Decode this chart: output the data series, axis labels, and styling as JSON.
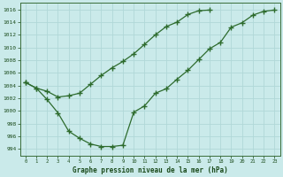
{
  "title": "Graphe pression niveau de la mer (hPa)",
  "background_color": "#caeaea",
  "grid_color": "#b0d8d8",
  "line_color": "#2d6b2d",
  "ylim": [
    993.0,
    1017.0
  ],
  "xlim": [
    -0.5,
    23.5
  ],
  "yticks": [
    994,
    996,
    998,
    1000,
    1002,
    1004,
    1006,
    1008,
    1010,
    1012,
    1014,
    1016
  ],
  "xticks": [
    0,
    1,
    2,
    3,
    4,
    5,
    6,
    7,
    8,
    9,
    10,
    11,
    12,
    13,
    14,
    15,
    16,
    17,
    18,
    19,
    20,
    21,
    22,
    23
  ],
  "series1_x": [
    0,
    1,
    2,
    3,
    4,
    5,
    6,
    7,
    8,
    9,
    10,
    11,
    12,
    13,
    14,
    15,
    16,
    17
  ],
  "series1_y": [
    1004.5,
    1003.6,
    1003.1,
    1002.2,
    1002.4,
    1002.8,
    1004.2,
    1005.6,
    1006.8,
    1007.8,
    1009.0,
    1010.5,
    1012.0,
    1013.3,
    1014.0,
    1015.2,
    1015.8,
    1015.9
  ],
  "series2_x": [
    0,
    1,
    2,
    3,
    4,
    5,
    6,
    7,
    8,
    9,
    10,
    11,
    12,
    13,
    14,
    15,
    16,
    17,
    18,
    19,
    20,
    21,
    22,
    23
  ],
  "series2_y": [
    1004.5,
    1003.6,
    1001.8,
    999.7,
    996.8,
    995.7,
    994.8,
    994.4,
    994.4,
    994.6,
    999.8,
    1000.8,
    1002.8,
    1003.5,
    1005.0,
    1006.4,
    1008.1,
    1009.8,
    1010.8,
    1013.2,
    1013.9,
    1015.1,
    1015.7,
    1015.9
  ]
}
